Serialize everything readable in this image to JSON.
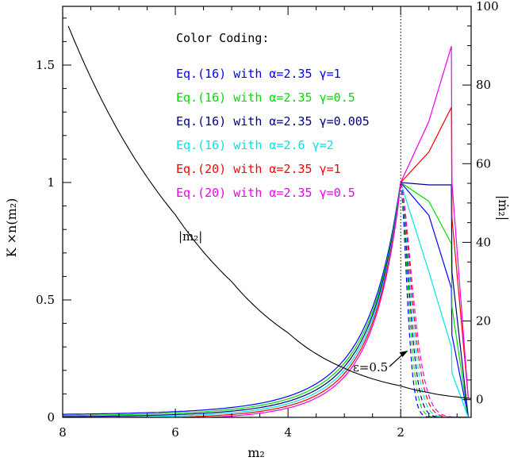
{
  "chart_data": {
    "type": "line",
    "title": "",
    "xlabel": "m₂",
    "ylabel": "K ×n(m₂)",
    "ylabel_right": "|ṁ₂|",
    "xlim": [
      8,
      0.75
    ],
    "ylim": [
      0,
      1.75
    ],
    "ylim_right": [
      -4.5,
      100
    ],
    "x_ticks": [
      8,
      6,
      4,
      2
    ],
    "y_ticks": [
      0,
      0.5,
      1,
      1.5
    ],
    "y_ticks_right": [
      0,
      20,
      40,
      60,
      80,
      100
    ],
    "y_tick_labels": [
      "0",
      "0.5",
      "1",
      "1.5"
    ],
    "x_tick_labels": [
      "8",
      "6",
      "4",
      "2"
    ],
    "y_tick_labels_right": [
      "0",
      "20",
      "40",
      "60",
      "80",
      "100"
    ],
    "grid": false,
    "legend_title": "Color Coding:",
    "legend_placement": "top-center",
    "vertical_line_x": 2,
    "annotations": [
      {
        "text": "|ṁ₂|",
        "x": 5.6,
        "y": 0.9
      },
      {
        "text": "ε=0.5",
        "x": 2.1,
        "y": 0.22,
        "arrow_to": [
          1.87,
          0.31
        ]
      }
    ],
    "series": [
      {
        "name": "Eq.(16) with α=2.35 γ=1",
        "color": "#0000ff",
        "x": [
          2.0,
          1.5,
          1.1,
          1.09,
          0.8
        ],
        "y": [
          1.0,
          0.86,
          0.55,
          0.35,
          0.0
        ]
      },
      {
        "name": "Eq.(16) with α=2.35 γ=0.5",
        "color": "#00dd00",
        "x": [
          2.0,
          1.5,
          1.1,
          1.09,
          0.8
        ],
        "y": [
          1.0,
          0.92,
          0.74,
          0.47,
          0.0
        ]
      },
      {
        "name": "Eq.(16) with α=2.35 γ=0.005",
        "color": "#000088",
        "x": [
          2.0,
          1.5,
          1.1,
          1.09,
          0.8
        ],
        "y": [
          1.0,
          0.99,
          0.99,
          0.62,
          0.0
        ]
      },
      {
        "name": "Eq.(16) with α=2.6  γ=2",
        "color": "#00e5e5",
        "x": [
          2.0,
          1.5,
          1.1,
          1.09,
          0.8
        ],
        "y": [
          1.0,
          0.62,
          0.3,
          0.19,
          0.0
        ]
      },
      {
        "name": "Eq.(20) with α=2.35 γ=1",
        "color": "#ff0000",
        "x": [
          2.0,
          1.5,
          1.1,
          1.09,
          0.8
        ],
        "y": [
          1.0,
          1.13,
          1.32,
          0.85,
          0.08
        ]
      },
      {
        "name": "Eq.(20) with α=2.35 γ=0.5",
        "color": "#ee00ee",
        "x": [
          2.0,
          1.5,
          1.1,
          1.09,
          0.8
        ],
        "y": [
          1.0,
          1.26,
          1.58,
          1.0,
          0.08
        ]
      }
    ],
    "mdot_curve": {
      "name": "|ṁ₂|",
      "color": "#000000",
      "axis": "right",
      "x": [
        7.9,
        7.0,
        6.0,
        5.0,
        4.0,
        3.0,
        2.0,
        1.5,
        1.0,
        0.75
      ],
      "y": [
        95,
        68,
        47,
        30,
        17,
        8,
        3.5,
        1.8,
        0.7,
        0.3
      ]
    }
  }
}
